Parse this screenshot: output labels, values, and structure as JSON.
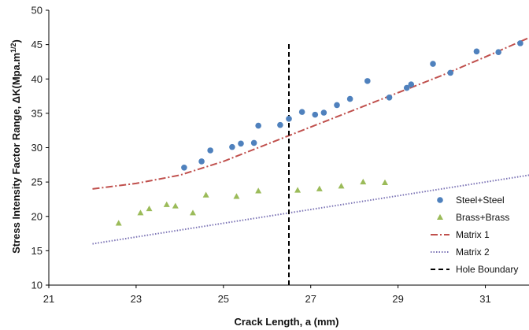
{
  "chart_data": {
    "type": "scatter",
    "xlabel": "Crack Length, a (mm)",
    "ylabel_main": "Stress Intensity Factor Range, ",
    "ylabel_delta": "Δ",
    "ylabel_unit": "K(Mpa.m",
    "ylabel_exp": "1/2",
    "ylabel_close": ")",
    "xlim": [
      21,
      32
    ],
    "ylim": [
      10,
      50
    ],
    "xticks": [
      21,
      23,
      25,
      27,
      29,
      31
    ],
    "yticks": [
      10,
      15,
      20,
      25,
      30,
      35,
      40,
      45,
      50
    ],
    "grid": false,
    "legend_position": "right",
    "series": [
      {
        "name": "Steel+Steel",
        "kind": "points",
        "marker": "circle",
        "color": "#4f81bd",
        "x": [
          24.1,
          24.5,
          24.7,
          25.2,
          25.4,
          25.7,
          25.8,
          26.3,
          26.5,
          26.8,
          27.1,
          27.3,
          27.6,
          27.9,
          28.3,
          28.8,
          29.2,
          29.3,
          29.8,
          30.2,
          30.8,
          31.3,
          31.8
        ],
        "y": [
          27.1,
          28.0,
          29.6,
          30.1,
          30.6,
          30.7,
          33.2,
          33.3,
          34.2,
          35.2,
          34.8,
          35.1,
          36.2,
          37.1,
          39.7,
          37.3,
          38.7,
          39.2,
          42.2,
          40.9,
          44.0,
          43.9,
          45.2
        ]
      },
      {
        "name": "Brass+Brass",
        "kind": "points",
        "marker": "triangle",
        "color": "#9bbb59",
        "x": [
          22.6,
          23.1,
          23.3,
          23.7,
          23.9,
          24.3,
          24.6,
          25.3,
          25.8,
          26.7,
          27.2,
          27.7,
          28.2,
          28.7
        ],
        "y": [
          19.0,
          20.5,
          21.1,
          21.7,
          21.5,
          20.5,
          23.1,
          22.9,
          23.7,
          23.8,
          24.0,
          24.4,
          25.0,
          24.9
        ]
      },
      {
        "name": "Matrix 1",
        "kind": "line",
        "dash": "dashdot",
        "color": "#c0504d",
        "x": [
          22,
          23,
          24,
          25,
          26,
          27,
          28,
          29,
          30,
          31,
          32
        ],
        "y": [
          24.0,
          24.8,
          26.0,
          28.0,
          30.5,
          33.0,
          35.5,
          38.0,
          40.5,
          43.2,
          46.0
        ]
      },
      {
        "name": "Matrix 2",
        "kind": "line",
        "dash": "dotted",
        "color": "#7b73b5",
        "x": [
          22,
          32
        ],
        "y": [
          16.0,
          26.0
        ]
      },
      {
        "name": "Hole Boundary",
        "kind": "vline",
        "dash": "dashed",
        "color": "#000000",
        "x": [
          26.5,
          26.5
        ],
        "y": [
          10,
          45.2
        ]
      }
    ]
  }
}
